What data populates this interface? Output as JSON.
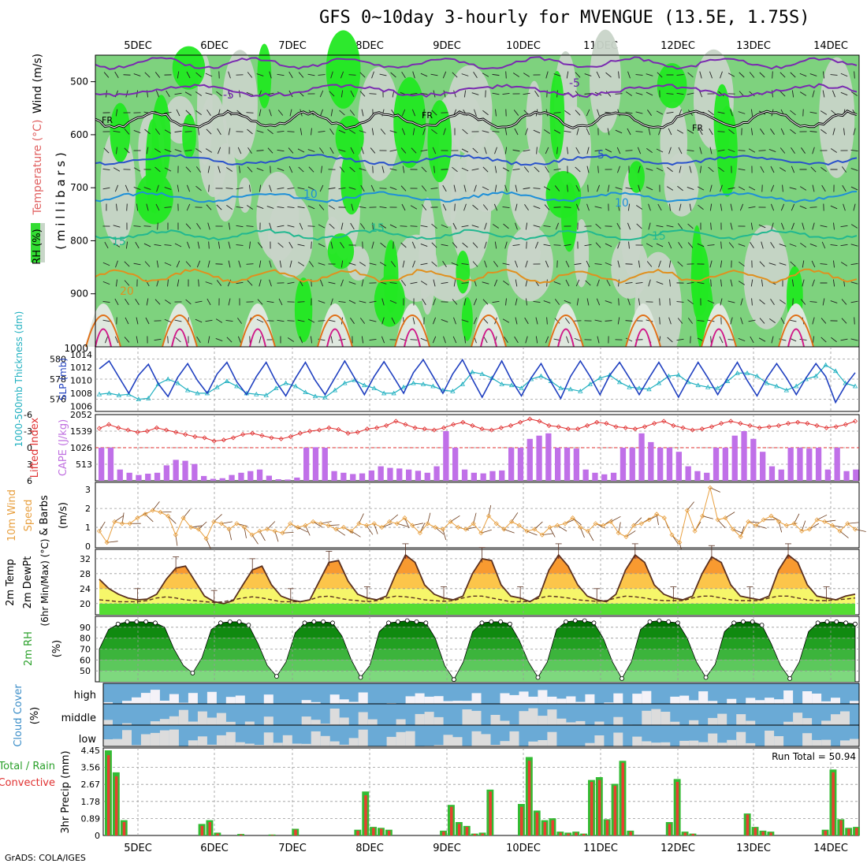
{
  "title": "GFS 0~10day 3-hourly for MVENGUE (13.5E, 1.75S)",
  "footer": "GrADS: COLA/IGES",
  "dates": [
    "5DEC",
    "6DEC",
    "7DEC",
    "8DEC",
    "9DEC",
    "10DEC",
    "11DEC",
    "12DEC",
    "13DEC",
    "14DEC"
  ],
  "panels": {
    "upper": {
      "ylabel_wind": "Wind (m/s)",
      "ylabel_temp": "Temperature (°C)",
      "ylabel_rh": "RH (%)",
      "ylabel_units": "( m i l l i b a r s )",
      "yticks": [
        "500",
        "600",
        "700",
        "800",
        "900",
        "1000"
      ],
      "contour_labels": {
        "minus5": "-5",
        "fr": "FR",
        "plus5": "5",
        "ten": "10",
        "fifteen": "15",
        "twenty": "20"
      }
    },
    "thickness": {
      "ylabel_left": "1000-500mb Thickness (dm)",
      "ylabel_right": "SLP (mb)",
      "yticks_left": [
        "580",
        "578",
        "576"
      ],
      "yticks_right": [
        "1014",
        "1012",
        "1010",
        "1008",
        "1006"
      ]
    },
    "cape": {
      "ylabel_left": "Lifted Index",
      "ylabel_right": "CAPE (J/kg)",
      "yticks_left": [
        "-6",
        "-3",
        "0",
        "3",
        "6"
      ],
      "yticks_right": [
        "2052",
        "1539",
        "1026",
        "513"
      ]
    },
    "wind10": {
      "ylabel_a": "10m Wind",
      "ylabel_b": "Speed",
      "ylabel_c": "& Barbs",
      "ylabel_d": "(m/s)",
      "yticks": [
        "3",
        "2",
        "1",
        "0"
      ]
    },
    "temp2m": {
      "ylabel_a": "2m Temp",
      "ylabel_b": "2m DewPt",
      "ylabel_c": "(6hr Min/Max) (°C)",
      "yticks": [
        "32",
        "28",
        "24",
        "20"
      ]
    },
    "rh2m": {
      "ylabel_a": "2m RH",
      "ylabel_b": "(%)",
      "yticks": [
        "90",
        "80",
        "70",
        "60",
        "50"
      ]
    },
    "cloud": {
      "ylabel_a": "Cloud Cover",
      "ylabel_b": "(%)",
      "levels": [
        "high",
        "middle",
        "low"
      ]
    },
    "precip": {
      "ylabel_a": "Total / Rain",
      "ylabel_b": "Convective",
      "ylabel_c": "3hr Precip (mm)",
      "yticks": [
        "4.45",
        "3.56",
        "2.67",
        "1.78",
        "0.89",
        "0"
      ],
      "run_total": "Run Total = 50.94"
    }
  },
  "chart_data": [
    {
      "type": "line",
      "title": "1000-500mb Thickness (dm)",
      "series": [
        {
          "name": "Thickness",
          "values": [
            576.5,
            576.6,
            576.4,
            576.5,
            576.0,
            576.1,
            577.5,
            578.0,
            577.6,
            576.9,
            576.6,
            576.6,
            577.2,
            577.8,
            577.3,
            576.6,
            576.5,
            576.4,
            577.1,
            577.6,
            577.3,
            576.7,
            576.3,
            576.2,
            576.9,
            577.6,
            577.9,
            577.4,
            577.1,
            576.6,
            576.6,
            577.2,
            577.6,
            577.5,
            577.3,
            576.9,
            576.8,
            577.5,
            578.7,
            578.5,
            578.1,
            577.5,
            577.4,
            577.1,
            578.0,
            578.3,
            577.8,
            577.1,
            577.0,
            576.8,
            577.5,
            578.1,
            578.4,
            577.7,
            577.2,
            577.1,
            577.0,
            577.6,
            578.3,
            578.4,
            577.7,
            577.4,
            577.2,
            577.1,
            577.8,
            578.6,
            578.6,
            578.3,
            577.6,
            577.3,
            576.9,
            577.3,
            578.0,
            578.3,
            579.4,
            578.8,
            577.6,
            577.3
          ]
        }
      ]
    },
    {
      "type": "line",
      "title": "SLP (mb)",
      "series": [
        {
          "name": "SLP",
          "values": [
            1011.8,
            1013.0,
            1010.5,
            1008.0,
            1010.8,
            1012.5,
            1009.5,
            1007.5,
            1010.5,
            1012.6,
            1010.0,
            1008.0,
            1011.0,
            1012.8,
            1009.8,
            1007.8,
            1010.6,
            1012.8,
            1009.8,
            1007.6,
            1010.4,
            1012.8,
            1010.0,
            1007.8,
            1010.4,
            1013.0,
            1010.4,
            1007.8,
            1010.6,
            1012.9,
            1010.5,
            1008.0,
            1011.2,
            1013.2,
            1010.6,
            1008.0,
            1011.0,
            1013.2,
            1010.2,
            1007.4,
            1010.3,
            1013.0,
            1010.0,
            1007.6,
            1010.4,
            1012.6,
            1009.8,
            1007.2,
            1010.6,
            1013.0,
            1010.6,
            1007.8,
            1010.8,
            1012.8,
            1010.4,
            1007.8,
            1010.4,
            1012.8,
            1010.2,
            1007.4,
            1010.2,
            1012.8,
            1010.4,
            1007.8,
            1010.4,
            1012.8,
            1010.0,
            1007.6,
            1010.4,
            1012.6,
            1010.4,
            1007.8,
            1010.4,
            1012.6,
            1010.6,
            1006.6,
            1009.2,
            1011.2
          ]
        }
      ]
    },
    {
      "type": "bar",
      "title": "CAPE (J/kg)",
      "series": [
        {
          "name": "CAPE",
          "values": [
            1026,
            1026,
            350,
            250,
            180,
            220,
            250,
            480,
            650,
            620,
            520,
            150,
            60,
            80,
            180,
            250,
            300,
            350,
            160,
            50,
            40,
            100,
            1026,
            1040,
            1026,
            300,
            250,
            210,
            230,
            320,
            450,
            400,
            380,
            350,
            310,
            250,
            450,
            1540,
            1026,
            350,
            250,
            230,
            300,
            320,
            1026,
            1026,
            1300,
            1400,
            1470,
            1026,
            1026,
            1000,
            350,
            250,
            200,
            250,
            1026,
            1026,
            1470,
            1200,
            1026,
            1026,
            900,
            450,
            300,
            250,
            1026,
            1026,
            1400,
            1540,
            1300,
            900,
            450,
            350,
            1026,
            1026,
            1000,
            1026,
            350,
            1026,
            300,
            350
          ]
        }
      ]
    },
    {
      "type": "line",
      "title": "Lifted Index",
      "series": [
        {
          "name": "Lifted Index",
          "values": [
            -3.5,
            -4.2,
            -3.6,
            -3.2,
            -2.8,
            -3.0,
            -3.6,
            -3.2,
            -2.8,
            -2.4,
            -2.0,
            -1.8,
            -1.2,
            -1.4,
            -1.8,
            -2.4,
            -2.6,
            -2.2,
            -1.8,
            -1.6,
            -2.0,
            -2.6,
            -3.0,
            -3.2,
            -3.6,
            -3.3,
            -2.6,
            -2.8,
            -3.4,
            -3.6,
            -4.0,
            -4.8,
            -4.2,
            -3.6,
            -3.4,
            -3.2,
            -3.6,
            -4.2,
            -4.6,
            -4.0,
            -3.4,
            -3.2,
            -3.6,
            -4.0,
            -4.6,
            -5.2,
            -4.8,
            -4.0,
            -3.8,
            -3.4,
            -3.4,
            -4.0,
            -4.6,
            -4.4,
            -3.8,
            -3.6,
            -3.4,
            -3.8,
            -4.4,
            -4.8,
            -4.0,
            -3.6,
            -3.2,
            -3.4,
            -3.8,
            -4.4,
            -4.8,
            -4.4,
            -4.0,
            -3.6,
            -3.8,
            -4.0,
            -4.4,
            -4.6,
            -4.4,
            -4.0,
            -3.6,
            -3.8,
            -4.2,
            -4.8
          ]
        }
      ]
    },
    {
      "type": "line",
      "title": "10m Wind Speed (m/s)",
      "series": [
        {
          "name": "Speed",
          "values": [
            0.8,
            0.2,
            1.3,
            1.2,
            1.2,
            1.5,
            1.7,
            1.9,
            1.8,
            1.6,
            0.6,
            1.5,
            1.0,
            0.9,
            0.4,
            1.3,
            1.2,
            0.9,
            1.2,
            1.0,
            0.6,
            0.8,
            0.9,
            0.8,
            0.7,
            1.2,
            1.0,
            1.1,
            1.3,
            1.2,
            1.1,
            0.9,
            1.0,
            0.8,
            1.2,
            1.1,
            1.2,
            1.0,
            1.3,
            1.2,
            1.5,
            1.1,
            0.7,
            1.2,
            1.0,
            0.9,
            1.3,
            1.0,
            0.9,
            1.2,
            0.7,
            1.6,
            1.2,
            0.9,
            1.3,
            1.1,
            0.8,
            0.9,
            0.6,
            1.0,
            1.1,
            1.2,
            1.5,
            1.0,
            0.8,
            1.2,
            1.1,
            1.3,
            0.7,
            0.5,
            1.1,
            1.2,
            1.4,
            1.7,
            1.5,
            0.6,
            0.2,
            1.9,
            0.8,
            1.6,
            3.1,
            1.4,
            1.5,
            0.9,
            0.5,
            1.3,
            1.1,
            1.4,
            1.6,
            1.3,
            1.1,
            1.2,
            0.8,
            0.9,
            1.4,
            1.3,
            1.1,
            0.8,
            1.2,
            0.9
          ]
        }
      ]
    },
    {
      "type": "area",
      "title": "2m Temp (°C)",
      "series": [
        {
          "name": "2m Temp",
          "values": [
            26.5,
            24.0,
            22.5,
            21.5,
            21.0,
            21.2,
            22.5,
            26.5,
            29.5,
            30.0,
            26.0,
            22.0,
            20.5,
            20.0,
            20.8,
            25.0,
            29.0,
            30.0,
            25.0,
            22.0,
            21.0,
            20.5,
            21.0,
            26.0,
            31.0,
            31.5,
            26.0,
            22.5,
            21.5,
            21.0,
            22.0,
            28.0,
            33.0,
            31.0,
            25.0,
            22.5,
            21.5,
            21.0,
            22.0,
            28.0,
            32.0,
            31.5,
            25.0,
            22.0,
            21.5,
            20.5,
            22.0,
            29.0,
            33.0,
            30.0,
            25.0,
            22.0,
            21.0,
            20.5,
            22.5,
            29.0,
            33.0,
            31.0,
            25.0,
            22.5,
            21.5,
            21.0,
            22.0,
            28.0,
            32.5,
            31.0,
            25.0,
            22.0,
            21.5,
            21.0,
            22.0,
            29.0,
            33.0,
            31.0,
            25.0,
            22.0,
            21.5,
            21.0,
            22.0,
            22.5
          ]
        },
        {
          "name": "2m DewPt",
          "values": [
            21.0,
            20.8,
            20.5,
            20.5,
            20.5,
            20.8,
            21.5,
            21.8,
            21.5,
            21.0,
            20.8,
            20.5,
            20.3,
            20.5,
            21.0,
            21.5,
            21.8,
            21.5,
            21.0,
            20.5,
            20.5,
            20.5,
            21.0,
            21.8,
            22.0,
            21.5,
            21.0,
            20.8,
            20.5,
            20.8,
            21.5,
            22.0,
            21.8,
            21.5,
            21.0,
            20.8,
            20.6,
            20.8,
            21.5,
            22.0,
            22.0,
            21.5,
            21.0,
            20.5,
            20.5,
            20.6,
            21.5,
            22.0,
            21.8,
            21.5,
            21.0,
            20.8,
            20.6,
            20.8,
            21.5,
            22.0,
            21.8,
            21.5,
            21.0,
            20.8,
            20.8,
            20.8,
            21.5,
            22.0,
            22.0,
            21.5,
            21.0,
            20.8,
            20.8,
            20.8,
            21.5,
            22.0,
            22.0,
            21.5,
            21.0,
            20.8,
            20.8,
            21.0,
            21.2,
            21.5
          ]
        }
      ]
    },
    {
      "type": "area",
      "title": "2m RH (%)",
      "series": [
        {
          "name": "2m RH",
          "values": [
            70,
            88,
            93,
            95,
            95,
            95,
            94,
            90,
            70,
            55,
            48,
            62,
            88,
            94,
            95,
            95,
            92,
            75,
            55,
            45,
            58,
            85,
            94,
            95,
            95,
            94,
            82,
            60,
            44,
            55,
            86,
            94,
            95,
            96,
            95,
            94,
            80,
            55,
            42,
            58,
            86,
            94,
            95,
            95,
            93,
            78,
            58,
            44,
            58,
            88,
            95,
            96,
            96,
            94,
            80,
            58,
            43,
            58,
            88,
            95,
            96,
            95,
            94,
            80,
            58,
            44,
            56,
            86,
            94,
            95,
            95,
            92,
            75,
            55,
            43,
            58,
            86,
            94,
            95,
            95,
            94,
            93
          ]
        }
      ]
    },
    {
      "type": "bar",
      "title": "3hr Precip (mm)",
      "series": [
        {
          "name": "Total / Rain",
          "values": [
            4.45,
            3.3,
            0.8,
            0,
            0,
            0,
            0,
            0,
            0,
            0,
            0,
            0,
            0.6,
            0.8,
            0.15,
            0,
            0,
            0.08,
            0,
            0,
            0,
            0.05,
            0,
            0,
            0.35,
            0,
            0,
            0,
            0,
            0,
            0,
            0,
            0.3,
            2.3,
            0.45,
            0.4,
            0.3,
            0,
            0,
            0,
            0,
            0,
            0,
            0.25,
            1.6,
            0.7,
            0.5,
            0.1,
            0.15,
            2.4,
            0,
            0,
            0,
            1.65,
            4.1,
            1.3,
            0.8,
            0.9,
            0.2,
            0.15,
            0.2,
            0.1,
            2.9,
            3.05,
            0.85,
            2.7,
            3.9,
            0.25,
            0,
            0,
            0,
            0,
            0.7,
            2.95,
            0.2,
            0.1,
            0,
            0,
            0,
            0,
            0,
            0,
            1.15,
            0.45,
            0.25,
            0.2,
            0,
            0,
            0,
            0,
            0,
            0,
            0.3,
            3.45,
            0.85,
            0.4,
            0.45
          ]
        },
        {
          "name": "Convective",
          "values": [
            4.2,
            3.1,
            0.7,
            0,
            0,
            0,
            0,
            0,
            0,
            0,
            0,
            0,
            0.5,
            0.7,
            0.1,
            0,
            0,
            0.05,
            0,
            0,
            0,
            0.03,
            0,
            0,
            0.3,
            0,
            0,
            0,
            0,
            0,
            0,
            0,
            0.25,
            2.1,
            0.4,
            0.35,
            0.25,
            0,
            0,
            0,
            0,
            0,
            0,
            0.2,
            1.5,
            0.6,
            0.45,
            0.08,
            0.1,
            2.3,
            0,
            0,
            0,
            1.5,
            3.9,
            1.2,
            0.7,
            0.8,
            0.15,
            0.1,
            0.15,
            0.08,
            2.8,
            2.9,
            0.8,
            2.6,
            3.8,
            0.2,
            0,
            0,
            0,
            0,
            0.6,
            2.8,
            0.15,
            0.08,
            0,
            0,
            0,
            0,
            0,
            0,
            1.1,
            0.4,
            0.2,
            0.15,
            0,
            0,
            0,
            0,
            0,
            0,
            0.25,
            3.3,
            0.8,
            0.35,
            0.4
          ]
        }
      ]
    }
  ]
}
